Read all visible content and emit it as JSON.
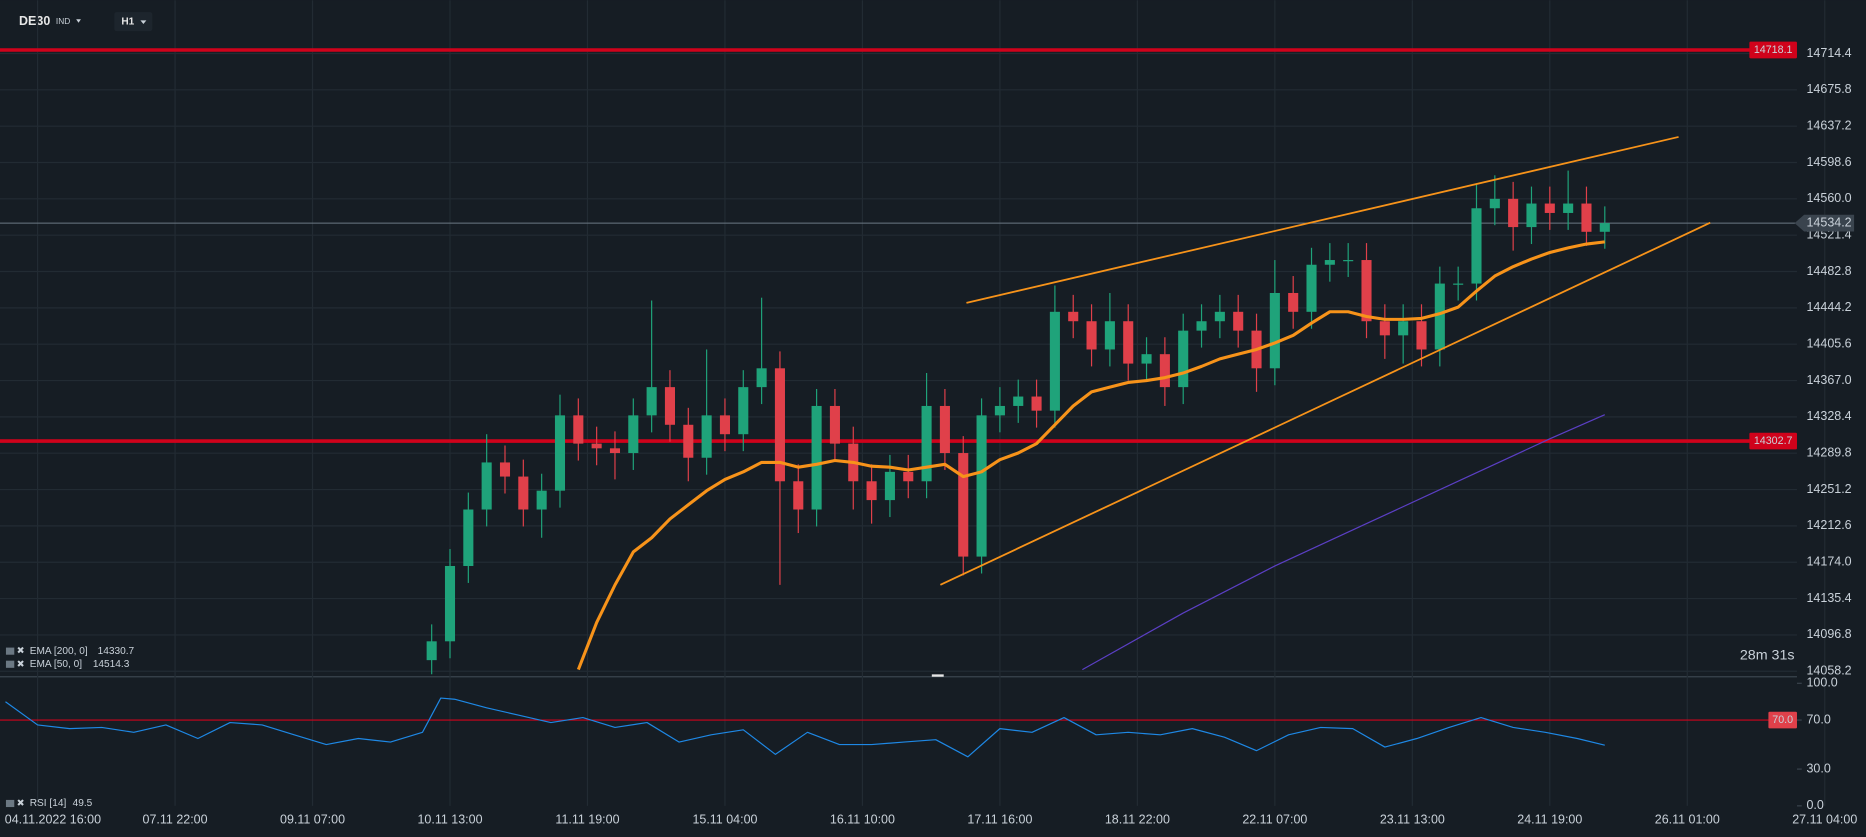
{
  "header": {
    "symbol": "DE30",
    "class": "IND",
    "timeframe": "H1"
  },
  "chart_data": [
    {
      "type": "candlestick",
      "annotations": {
        "timer": "28m 31s"
      },
      "up_color": "#1fa37a",
      "down_color": "#e0404a",
      "grid": true,
      "xlim": [
        -8.2,
        399
      ],
      "xticks": [
        {
          "value": 0,
          "label": "04.11.2022 16:00"
        },
        {
          "value": 30,
          "label": "07.11 22:00"
        },
        {
          "value": 60,
          "label": "09.11 07:00"
        },
        {
          "value": 90,
          "label": "10.11 13:00"
        },
        {
          "value": 120,
          "label": "11.11 19:00"
        },
        {
          "value": 150,
          "label": "15.11 04:00"
        },
        {
          "value": 180,
          "label": "16.11 10:00"
        },
        {
          "value": 210,
          "label": "17.11 16:00"
        },
        {
          "value": 240,
          "label": "18.11 22:00"
        },
        {
          "value": 270,
          "label": "22.11 07:00"
        },
        {
          "value": 300,
          "label": "23.11 13:00"
        },
        {
          "value": 330,
          "label": "24.11 19:00"
        },
        {
          "value": 360,
          "label": "26.11 01:00"
        },
        {
          "value": 390,
          "label": "27.11 04:00"
        }
      ],
      "ylim": [
        14053,
        14771
      ],
      "yticks": [
        14714.4,
        14675.8,
        14637.2,
        14598.6,
        {
          "value": 14560,
          "label": "14560.0"
        },
        14521.4,
        14482.8,
        14444.2,
        14405.6,
        {
          "value": 14367,
          "label": "14367.0"
        },
        14328.4,
        14289.8,
        14251.2,
        14212.6,
        {
          "value": 14174,
          "label": "14174.0"
        },
        14135.4,
        14096.8,
        14058.2
      ],
      "x": [
        86,
        90,
        94,
        98,
        102,
        106,
        110,
        114,
        118,
        122,
        126,
        130,
        134,
        138,
        142,
        146,
        150,
        154,
        158,
        162,
        166,
        170,
        174,
        178,
        182,
        186,
        190,
        194,
        198,
        202,
        206,
        210,
        214,
        218,
        222,
        226,
        230,
        234,
        238,
        242,
        246,
        250,
        254,
        258,
        262,
        266,
        270,
        274,
        278,
        282,
        286,
        290,
        294,
        298,
        302,
        306,
        310,
        314,
        318,
        322,
        326,
        330,
        334,
        338,
        342
      ],
      "open": [
        14070,
        14090,
        14170,
        14230,
        14280,
        14265,
        14230,
        14250,
        14330,
        14300,
        14295,
        14290,
        14330,
        14360,
        14320,
        14285,
        14330,
        14310,
        14360,
        14380,
        14260,
        14230,
        14340,
        14300,
        14260,
        14240,
        14270,
        14260,
        14340,
        14290,
        14180,
        14330,
        14340,
        14350,
        14335,
        14440,
        14430,
        14400,
        14430,
        14385,
        14395,
        14360,
        14420,
        14430,
        14440,
        14420,
        14380,
        14460,
        14440,
        14490,
        14495,
        14495,
        14430,
        14415,
        14430,
        14400,
        14470,
        14470,
        14550,
        14560,
        14530,
        14555,
        14545,
        14555,
        14525
      ],
      "high": [
        14108,
        14188,
        14248,
        14310,
        14298,
        14283,
        14268,
        14352,
        14348,
        14318,
        14313,
        14348,
        14452,
        14378,
        14338,
        14400,
        14348,
        14378,
        14455,
        14398,
        14278,
        14358,
        14358,
        14318,
        14278,
        14288,
        14288,
        14375,
        14358,
        14308,
        14348,
        14360,
        14368,
        14368,
        14468,
        14458,
        14448,
        14460,
        14448,
        14413,
        14413,
        14438,
        14448,
        14458,
        14458,
        14438,
        14495,
        14478,
        14508,
        14513,
        14513,
        14513,
        14448,
        14448,
        14448,
        14488,
        14488,
        14575,
        14585,
        14578,
        14573,
        14573,
        14590,
        14573,
        14552
      ],
      "low": [
        14055,
        14072,
        14152,
        14212,
        14247,
        14212,
        14200,
        14232,
        14282,
        14277,
        14262,
        14272,
        14312,
        14302,
        14260,
        14267,
        14292,
        14292,
        14342,
        14150,
        14205,
        14212,
        14282,
        14230,
        14215,
        14222,
        14242,
        14242,
        14272,
        14160,
        14162,
        14312,
        14322,
        14317,
        14317,
        14412,
        14382,
        14382,
        14367,
        14367,
        14340,
        14342,
        14402,
        14412,
        14402,
        14355,
        14362,
        14422,
        14422,
        14472,
        14477,
        14412,
        14390,
        14385,
        14382,
        14382,
        14452,
        14452,
        14532,
        14505,
        14512,
        14527,
        14527,
        14510,
        14507
      ],
      "close": [
        14090,
        14170,
        14230,
        14280,
        14265,
        14230,
        14250,
        14330,
        14300,
        14295,
        14290,
        14330,
        14360,
        14320,
        14285,
        14330,
        14310,
        14360,
        14380,
        14260,
        14230,
        14340,
        14300,
        14260,
        14240,
        14270,
        14260,
        14340,
        14290,
        14180,
        14330,
        14340,
        14350,
        14335,
        14440,
        14430,
        14400,
        14430,
        14385,
        14395,
        14360,
        14420,
        14430,
        14440,
        14420,
        14380,
        14460,
        14440,
        14490,
        14495,
        14495,
        14430,
        14415,
        14430,
        14400,
        14470,
        14470,
        14550,
        14560,
        14530,
        14555,
        14545,
        14555,
        14525,
        14534.2
      ],
      "series": [
        {
          "name": "EMA [200, 0]",
          "color": "#5b3fc4",
          "x": [
            228,
            250,
            270,
            290,
            310,
            330,
            342
          ],
          "values": [
            14060,
            14120,
            14170,
            14215,
            14260,
            14305,
            14330.7
          ]
        },
        {
          "name": "EMA [50, 0]",
          "color": "#f7931a",
          "x": [
            118,
            122,
            126,
            130,
            134,
            138,
            142,
            146,
            150,
            154,
            158,
            162,
            166,
            170,
            174,
            178,
            182,
            186,
            190,
            194,
            198,
            202,
            206,
            210,
            214,
            218,
            222,
            226,
            230,
            234,
            238,
            242,
            246,
            250,
            254,
            258,
            262,
            266,
            270,
            274,
            278,
            282,
            286,
            290,
            294,
            298,
            302,
            306,
            310,
            314,
            318,
            322,
            326,
            330,
            334,
            338,
            342
          ],
          "values": [
            14060,
            14110,
            14150,
            14185,
            14200,
            14220,
            14235,
            14250,
            14262,
            14270,
            14280,
            14280,
            14275,
            14278,
            14282,
            14280,
            14276,
            14275,
            14272,
            14275,
            14278,
            14265,
            14270,
            14283,
            14290,
            14300,
            14320,
            14340,
            14355,
            14360,
            14365,
            14367,
            14370,
            14375,
            14382,
            14390,
            14395,
            14400,
            14407,
            14415,
            14428,
            14440,
            14440,
            14435,
            14432,
            14432,
            14433,
            14438,
            14445,
            14462,
            14478,
            14488,
            14496,
            14503,
            14508,
            14512,
            14514.3
          ]
        }
      ],
      "levels": [
        {
          "value": 14718.1,
          "color": "#d0021b"
        },
        {
          "value": 14302.7,
          "color": "#d0021b"
        }
      ],
      "trendlines": [
        {
          "x": [
            202.7,
            358.1
          ],
          "values": [
            14449.6,
            14625.7
          ],
          "color": "#f7931a"
        },
        {
          "x": [
            197,
            365
          ],
          "values": [
            14150,
            14534.6
          ],
          "color": "#f7931a"
        }
      ]
    },
    {
      "type": "line",
      "name": "RSI [14]",
      "color": "#1e88e5",
      "ylim": [
        0,
        100
      ],
      "yticks": [
        {
          "value": 100,
          "label": "100.0"
        },
        {
          "value": 70,
          "label": "70.0"
        },
        {
          "value": 30,
          "label": "30.0"
        },
        {
          "value": 0,
          "label": "0.0"
        }
      ],
      "levels": [
        {
          "value": 70,
          "label": "70.0",
          "color": "#d0021b"
        }
      ],
      "x": [
        -7,
        0,
        7,
        14,
        21,
        28,
        35,
        42,
        49,
        56,
        63,
        70,
        77,
        84,
        88,
        91,
        98,
        105,
        112,
        119,
        126,
        133,
        140,
        147,
        154,
        161,
        168,
        175,
        182,
        189,
        196,
        203,
        210,
        217,
        224,
        231,
        238,
        245,
        252,
        259,
        266,
        273,
        280,
        287,
        294,
        301,
        308,
        315,
        322,
        329,
        336,
        342
      ],
      "values": [
        85,
        66,
        63,
        64,
        60,
        66,
        55,
        68,
        66,
        58,
        50,
        55,
        52,
        60,
        88,
        87,
        80,
        74,
        68,
        72,
        64,
        68,
        52,
        58,
        62,
        42,
        60,
        50,
        50,
        52,
        54,
        40,
        63,
        60,
        72,
        58,
        60,
        58,
        63,
        56,
        45,
        58,
        64,
        63,
        48,
        55,
        64,
        72,
        64,
        60,
        55,
        49.5
      ]
    }
  ]
}
